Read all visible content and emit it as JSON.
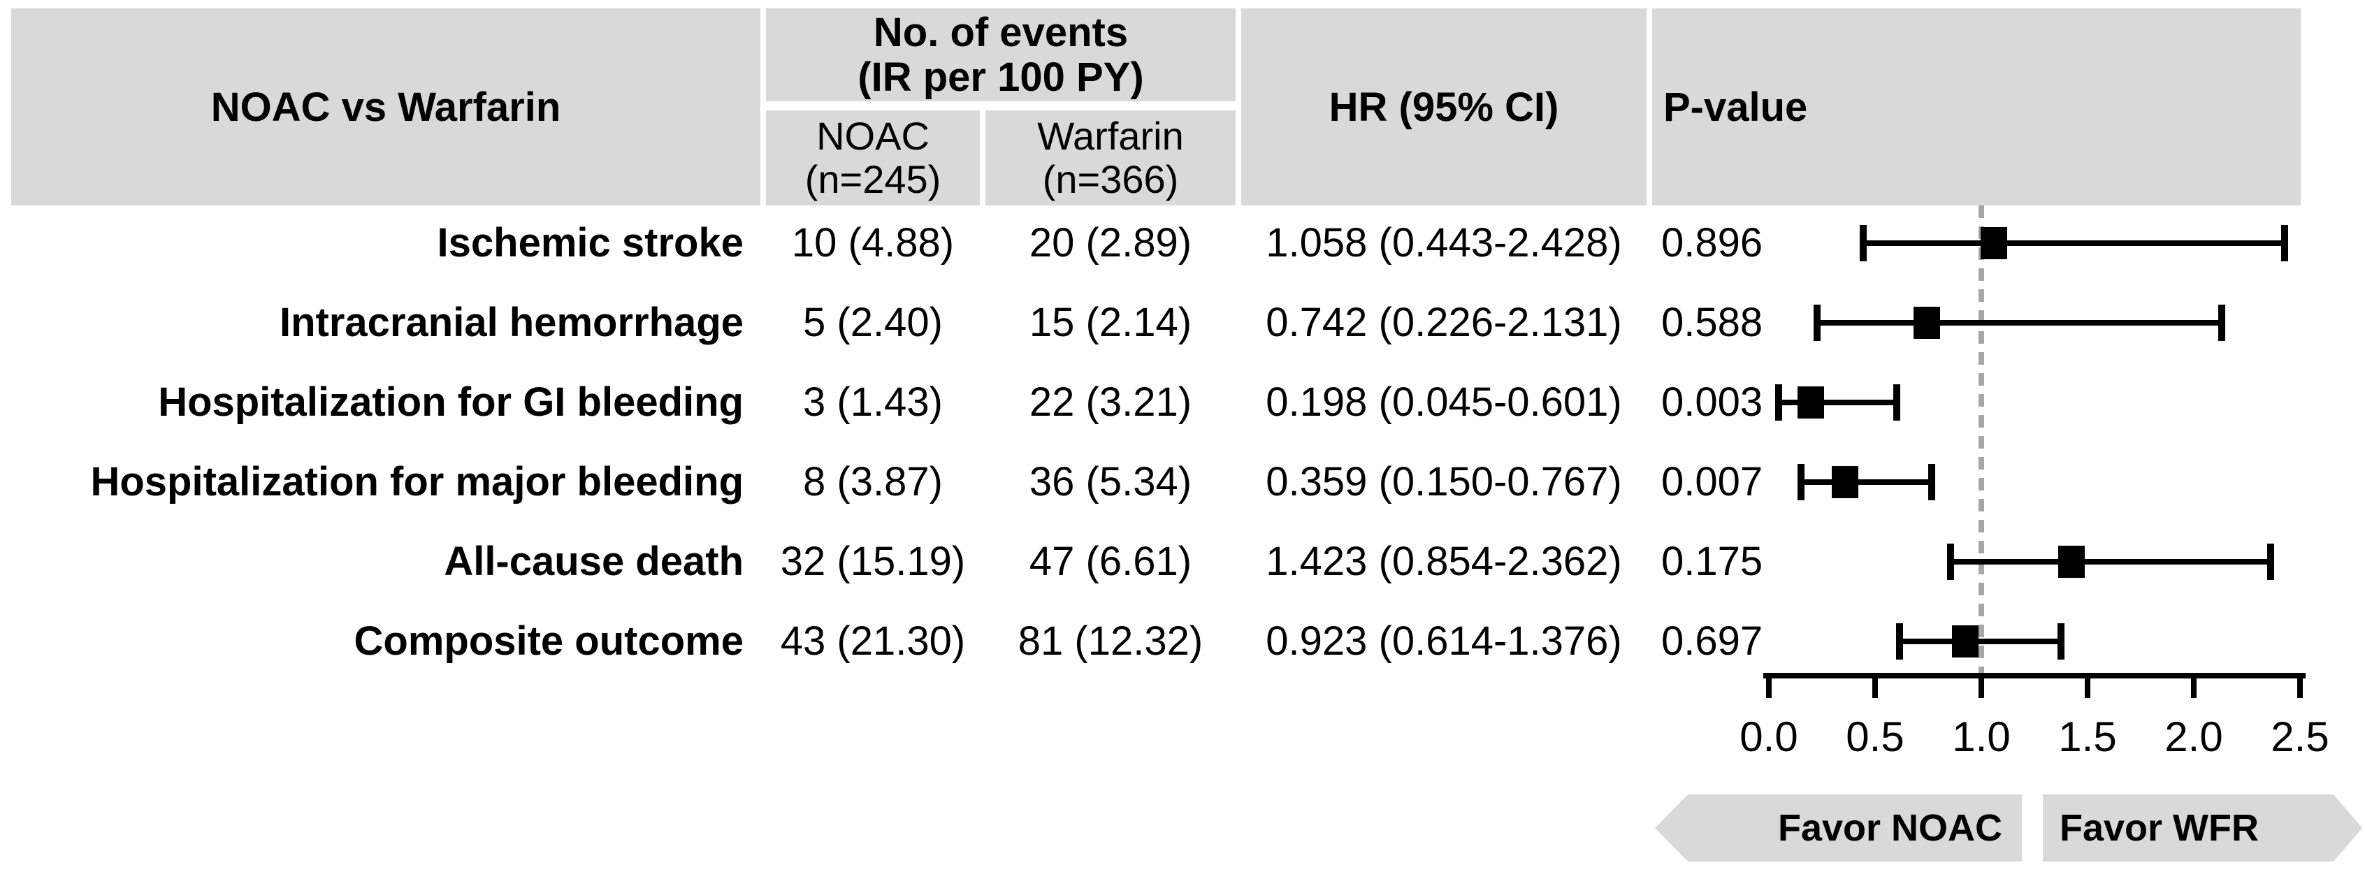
{
  "figure": {
    "header": {
      "col_outcome": "NOAC vs Warfarin",
      "col_events_line1": "No. of events",
      "col_events_line2": "(IR per 100 PY)",
      "sub_noac_line1": "NOAC",
      "sub_noac_line2": "(n=245)",
      "sub_warfarin_line1": "Warfarin",
      "sub_warfarin_line2": "(n=366)",
      "col_hr": "HR (95% CI)",
      "col_p": "P-value"
    },
    "colors": {
      "header_bg": "#d9d9d9",
      "banner_bg": "#d9d9d9",
      "reference_line": "#a6a6a6",
      "marker": "#000000"
    },
    "favor_left": "Favor NOAC",
    "favor_right": "Favor WFR"
  },
  "chart_data": {
    "type": "scatter",
    "variant": "forest_plot",
    "title": "NOAC vs Warfarin",
    "x_axis": {
      "tick_labels": [
        "0.0",
        "0.5",
        "1.0",
        "1.5",
        "2.0",
        "2.5"
      ],
      "tick_values": [
        0,
        0.5,
        1.0,
        1.5,
        2.0,
        2.5
      ],
      "xlim": [
        0,
        2.5
      ],
      "reference_line": 1.0
    },
    "grid": false,
    "rows": [
      {
        "outcome": "Ischemic stroke",
        "noac_events": "10 (4.88)",
        "warfarin_events": "20 (2.89)",
        "hr_text": "1.058 (0.443-2.428)",
        "hr": 1.058,
        "ci_low": 0.443,
        "ci_high": 2.428,
        "p_value": "0.896"
      },
      {
        "outcome": "Intracranial hemorrhage",
        "noac_events": "5 (2.40)",
        "warfarin_events": "15 (2.14)",
        "hr_text": "0.742 (0.226-2.131)",
        "hr": 0.742,
        "ci_low": 0.226,
        "ci_high": 2.131,
        "p_value": "0.588"
      },
      {
        "outcome": "Hospitalization for GI bleeding",
        "noac_events": "3 (1.43)",
        "warfarin_events": "22 (3.21)",
        "hr_text": "0.198 (0.045-0.601)",
        "hr": 0.198,
        "ci_low": 0.045,
        "ci_high": 0.601,
        "p_value": "0.003"
      },
      {
        "outcome": "Hospitalization for major bleeding",
        "noac_events": "8 (3.87)",
        "warfarin_events": "36 (5.34)",
        "hr_text": "0.359 (0.150-0.767)",
        "hr": 0.359,
        "ci_low": 0.15,
        "ci_high": 0.767,
        "p_value": "0.007"
      },
      {
        "outcome": "All-cause death",
        "noac_events": "32 (15.19)",
        "warfarin_events": "47 (6.61)",
        "hr_text": "1.423 (0.854-2.362)",
        "hr": 1.423,
        "ci_low": 0.854,
        "ci_high": 2.362,
        "p_value": "0.175"
      },
      {
        "outcome": "Composite outcome",
        "noac_events": "43 (21.30)",
        "warfarin_events": "81 (12.32)",
        "hr_text": "0.923 (0.614-1.376)",
        "hr": 0.923,
        "ci_low": 0.614,
        "ci_high": 1.376,
        "p_value": "0.697"
      }
    ]
  }
}
